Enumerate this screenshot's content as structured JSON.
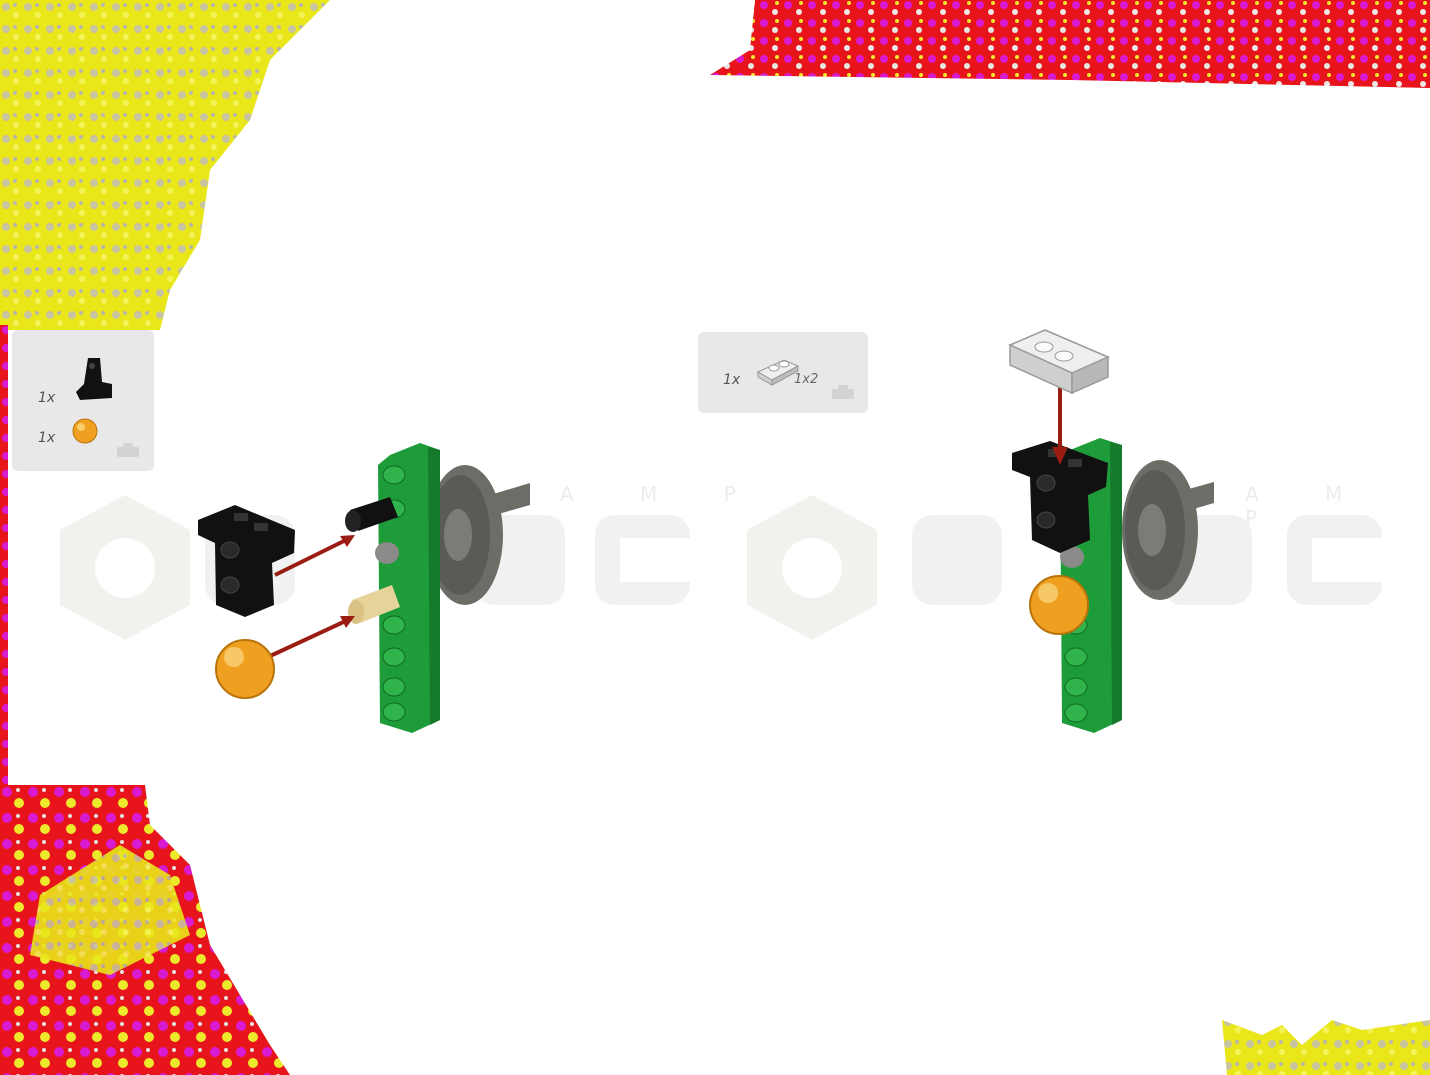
{
  "step_left": {
    "parts": [
      {
        "qty": "1x",
        "icon": "black-pin-connector-icon"
      },
      {
        "qty": "1x",
        "icon": "orange-ball-icon"
      }
    ]
  },
  "step_right": {
    "parts": [
      {
        "qty": "1x",
        "size": "1x2",
        "icon": "light-gray-plate-icon"
      }
    ]
  },
  "watermark": {
    "letters_left": "A M P",
    "letters_right": "A M P"
  },
  "colors": {
    "beam_green": "#1f9c3a",
    "connector_black": "#111111",
    "ball_orange": "#f0a020",
    "arrow_red": "#9b1c12",
    "gear_gray": "#6d6d68",
    "plate_gray": "#d9d9d9",
    "box_gray": "#e8e8e8"
  }
}
